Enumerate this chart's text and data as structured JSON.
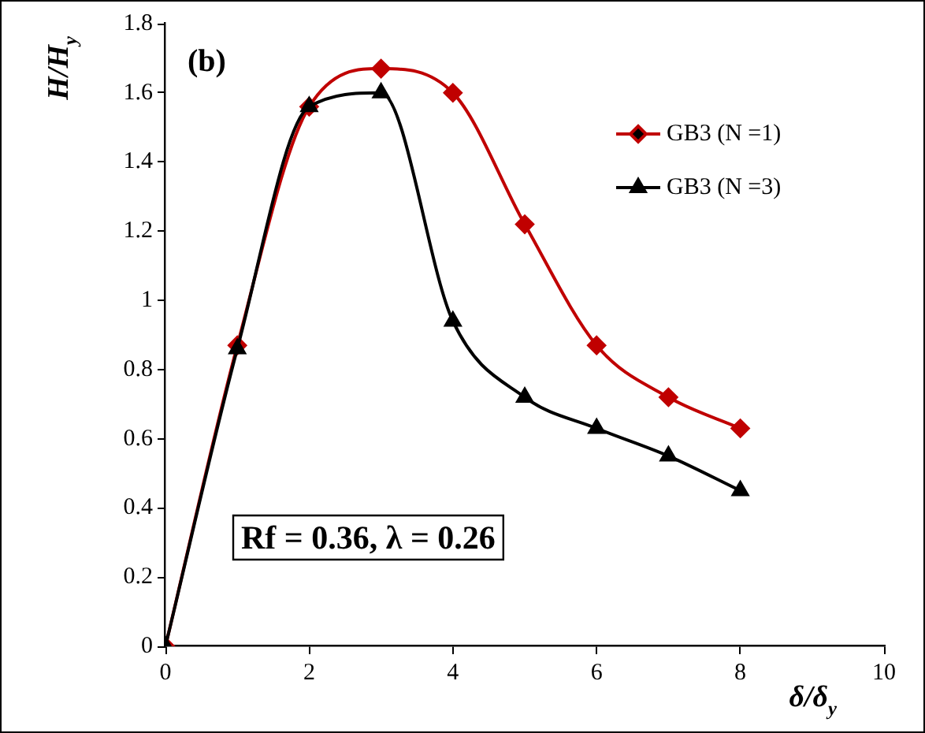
{
  "chart_data": {
    "type": "line",
    "xlabel": "δ/δ$_{y}$",
    "ylabel": "H/H$_{y}$",
    "annotations": [
      "(b)",
      "Rf = 0.36, λ = 0.26"
    ],
    "x": [
      0,
      1,
      2,
      3,
      4,
      5,
      6,
      7,
      8
    ],
    "series": [
      {
        "name": "GB3 (N =1)",
        "color": "#c00000",
        "marker": "diamond",
        "values": [
          0,
          0.87,
          1.56,
          1.67,
          1.6,
          1.22,
          0.87,
          0.72,
          0.63
        ]
      },
      {
        "name": "GB3 (N =3)",
        "color": "#000000",
        "marker": "triangle",
        "values": [
          0,
          0.86,
          1.56,
          1.6,
          0.94,
          0.72,
          0.63,
          0.55,
          0.45
        ]
      }
    ],
    "xlim": [
      0,
      10
    ],
    "xticks": [
      0,
      2,
      4,
      6,
      8,
      10
    ],
    "ylim": [
      0,
      1.8
    ],
    "yticks": [
      0,
      0.2,
      0.4,
      0.6,
      0.8,
      1,
      1.2,
      1.4,
      1.6,
      1.8
    ],
    "grid": false,
    "legend": "top right"
  }
}
